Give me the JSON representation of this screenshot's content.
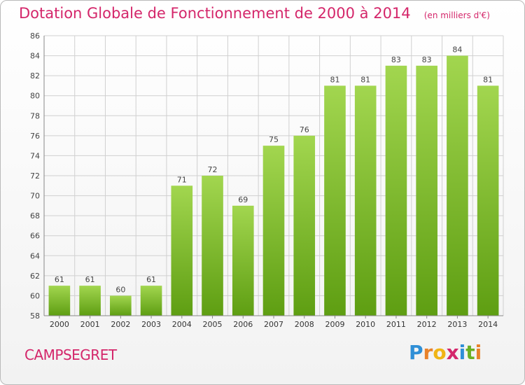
{
  "title": "Dotation Globale de Fonctionnement de 2000 à 2014",
  "unit": "(en milliers d'€)",
  "commune": "CAMPSEGRET",
  "brand": "Proxiti",
  "colors": {
    "title": "#d4266a",
    "bar_top": "#a2d64f",
    "bar_bottom": "#5e9e12",
    "grid": "#d0d0d0"
  },
  "chart_data": {
    "type": "bar",
    "categories": [
      "2000",
      "2001",
      "2002",
      "2003",
      "2004",
      "2005",
      "2006",
      "2007",
      "2008",
      "2009",
      "2010",
      "2011",
      "2012",
      "2013",
      "2014"
    ],
    "values": [
      61,
      61,
      60,
      61,
      71,
      72,
      69,
      75,
      76,
      81,
      81,
      83,
      83,
      84,
      81
    ],
    "ylim": [
      58,
      86
    ],
    "yticks": [
      58,
      60,
      62,
      64,
      66,
      68,
      70,
      72,
      74,
      76,
      78,
      80,
      82,
      84,
      86
    ],
    "grid": true,
    "data_labels": true
  }
}
